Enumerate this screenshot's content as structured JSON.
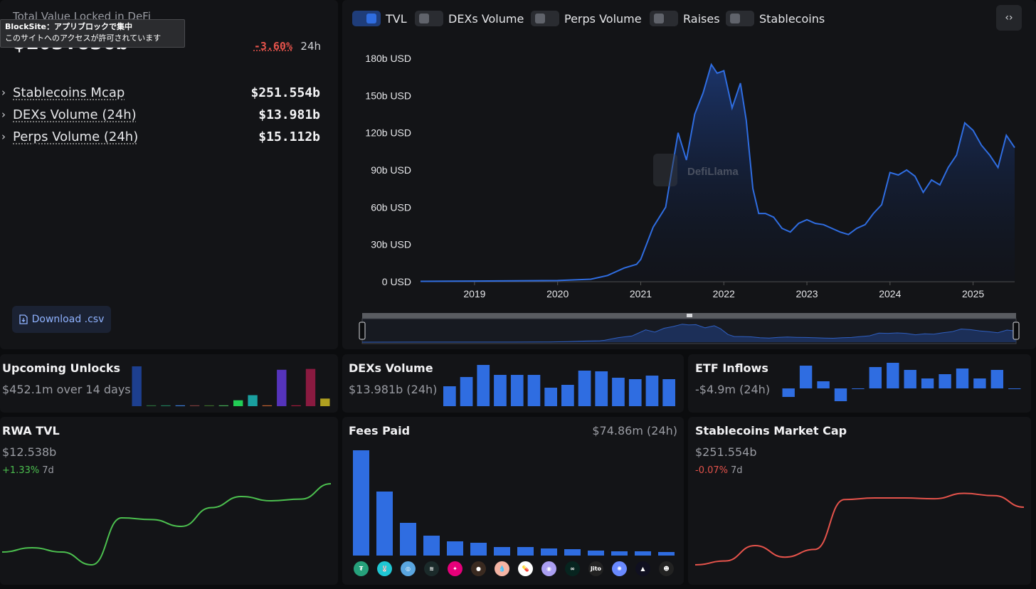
{
  "overview": {
    "tvl_title": "Total Value Locked in DeFi",
    "tvl_value": "$103.836b",
    "tvl_change": "-3.60%",
    "tvl_change_period": "24h",
    "tooltip_line1": "BlockSite：アプリブロックで集中",
    "tooltip_line2": "このサイトへのアクセスが許可されています",
    "metrics": [
      {
        "label": "Stablecoins Mcap",
        "value": "$251.554b"
      },
      {
        "label": "DEXs Volume (24h)",
        "value": "$13.981b"
      },
      {
        "label": "Perps Volume (24h)",
        "value": "$15.112b"
      }
    ],
    "download_label": "Download .csv"
  },
  "toggles": [
    {
      "label": "TVL",
      "on": true
    },
    {
      "label": "DEXs Volume",
      "on": false
    },
    {
      "label": "Perps Volume",
      "on": false
    },
    {
      "label": "Raises",
      "on": false
    },
    {
      "label": "Stablecoins",
      "on": false
    }
  ],
  "embed_label": "‹›",
  "watermark": "DefiLlama",
  "chart_data": [
    {
      "type": "area",
      "series": [
        {
          "name": "TVL"
        }
      ],
      "ylabel": "",
      "y_ticks": [
        "0 USD",
        "30b USD",
        "60b USD",
        "90b USD",
        "120b USD",
        "150b USD",
        "180b USD"
      ],
      "x_ticks": [
        "2019",
        "2020",
        "2021",
        "2022",
        "2023",
        "2024",
        "2025"
      ],
      "ylim": [
        0,
        180
      ],
      "y_unit": "b USD",
      "x": [
        2018.35,
        2019.0,
        2019.5,
        2020.0,
        2020.4,
        2020.6,
        2020.8,
        2020.95,
        2021.0,
        2021.15,
        2021.3,
        2021.45,
        2021.55,
        2021.65,
        2021.75,
        2021.85,
        2021.92,
        2022.0,
        2022.1,
        2022.2,
        2022.27,
        2022.35,
        2022.42,
        2022.5,
        2022.6,
        2022.7,
        2022.8,
        2022.9,
        2023.0,
        2023.1,
        2023.2,
        2023.3,
        2023.4,
        2023.5,
        2023.6,
        2023.7,
        2023.8,
        2023.9,
        2024.0,
        2024.1,
        2024.2,
        2024.3,
        2024.4,
        2024.5,
        2024.6,
        2024.7,
        2024.8,
        2024.9,
        2025.0,
        2025.1,
        2025.2,
        2025.3,
        2025.4,
        2025.5
      ],
      "values": [
        0.3,
        0.5,
        0.7,
        0.9,
        2,
        5,
        11,
        14,
        18,
        44,
        60,
        120,
        98,
        135,
        152,
        175,
        168,
        170,
        140,
        160,
        130,
        75,
        55,
        55,
        52,
        43,
        40,
        47,
        50,
        47,
        46,
        43,
        40,
        38,
        43,
        46,
        55,
        62,
        88,
        86,
        90,
        85,
        72,
        82,
        78,
        92,
        102,
        128,
        122,
        110,
        102,
        92,
        118,
        108
      ]
    },
    {
      "type": "bar",
      "title": "Upcoming Unlocks",
      "values": [
        47,
        1,
        1,
        1,
        1,
        1,
        1,
        7,
        13,
        1,
        43,
        1,
        44,
        9
      ],
      "colors": [
        "#1d3f8f",
        "#2a6b3a",
        "#1f7a5a",
        "#3a7ad5",
        "#7a3a3a",
        "#3a6a2a",
        "#44aa55",
        "#22cc55",
        "#1aa0a0",
        "#c06030",
        "#5533bb",
        "#a01a3a",
        "#8a1a40",
        "#b0a020"
      ]
    },
    {
      "type": "bar",
      "title": "DEXs Volume",
      "values": [
        28,
        41,
        58,
        44,
        44,
        44,
        26,
        30,
        50,
        49,
        40,
        38,
        43,
        38
      ]
    },
    {
      "type": "bar",
      "title": "ETF Inflows",
      "values": [
        -6,
        16,
        5,
        -9,
        0,
        15,
        18,
        13,
        7,
        10,
        14,
        7,
        13,
        0
      ]
    },
    {
      "type": "line",
      "title": "RWA TVL",
      "values": [
        0.2,
        0.25,
        0.2,
        0.05,
        0.6,
        0.58,
        0.5,
        0.72,
        0.85,
        0.8,
        0.82,
        1.0
      ]
    },
    {
      "type": "bar",
      "title": "Fees Paid",
      "values": [
        148,
        90,
        46,
        28,
        20,
        18,
        12,
        12,
        10,
        9,
        7,
        6,
        6,
        5
      ]
    },
    {
      "type": "line",
      "title": "Stablecoins Market Cap",
      "values": [
        0.0,
        0.05,
        0.25,
        0.1,
        0.2,
        0.85,
        0.87,
        0.87,
        0.86,
        0.93,
        0.9,
        0.75
      ]
    }
  ],
  "cards": {
    "unlocks": {
      "title": "Upcoming Unlocks",
      "sub": "$452.1m over 14 days"
    },
    "dex": {
      "title": "DEXs Volume",
      "sub": "$13.981b (24h)"
    },
    "etf": {
      "title": "ETF Inflows",
      "sub": "-$4.9m (24h)"
    },
    "rwa": {
      "title": "RWA TVL",
      "sub": "$12.538b",
      "change": "+1.33%",
      "period": "7d"
    },
    "fees": {
      "title": "Fees Paid",
      "sub": "$74.86m (24h)"
    },
    "stables": {
      "title": "Stablecoins Market Cap",
      "sub": "$251.554b",
      "change": "-0.07%",
      "period": "7d"
    }
  },
  "colors": {
    "accent": "#2f6de1",
    "positive": "#4cc04f",
    "negative": "#e5534b"
  },
  "fee_logos": [
    {
      "name": "tether-icon",
      "color": "#26a17b",
      "glyph": "₮"
    },
    {
      "name": "pancakeswap-icon",
      "color": "#1fc7d4",
      "glyph": "🐰"
    },
    {
      "name": "uniswap-like-icon",
      "color": "#5aa6e0",
      "glyph": "◎"
    },
    {
      "name": "wave-icon",
      "color": "#1b2a2a",
      "glyph": "≋"
    },
    {
      "name": "pump-icon",
      "color": "#e6007a",
      "glyph": "✦"
    },
    {
      "name": "circle-orange-icon",
      "color": "#3a2a20",
      "glyph": "●"
    },
    {
      "name": "drop-icon",
      "color": "#f4b4a4",
      "glyph": "💧"
    },
    {
      "name": "pill-icon",
      "color": "#ffffff",
      "glyph": "💊"
    },
    {
      "name": "ghost-icon",
      "color": "#ab9ff2",
      "glyph": "◉"
    },
    {
      "name": "hyperliquid-icon",
      "color": "#07241f",
      "glyph": "∞"
    },
    {
      "name": "jito-icon",
      "color": "#222",
      "glyph": "Jito"
    },
    {
      "name": "rainbow-icon",
      "color": "#6a8aff",
      "glyph": "✺"
    },
    {
      "name": "triangle-icon",
      "color": "#101020",
      "glyph": "▲"
    },
    {
      "name": "mascot-icon",
      "color": "#222",
      "glyph": "☻"
    }
  ]
}
